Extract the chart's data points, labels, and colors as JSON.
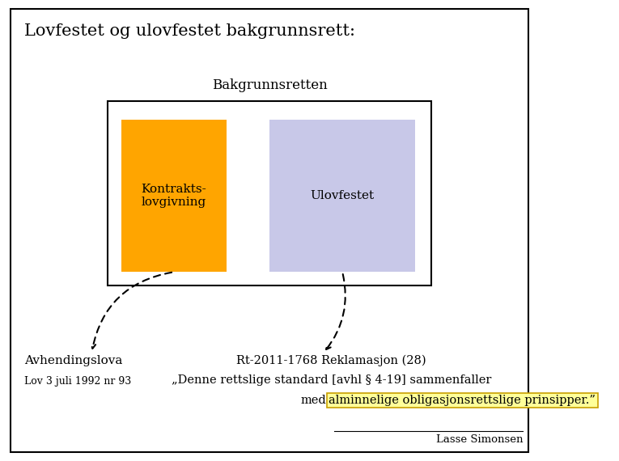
{
  "title": "Lovfestet og ulovfestet bakgrunnsrett:",
  "background_color": "#ffffff",
  "outer_box_color": "#000000",
  "inner_box_color": "#000000",
  "orange_box_color": "#FFA500",
  "blue_box_color": "#C8C8E8",
  "bakgrunnsretten_label": "Bakgrunnsretten",
  "kontrakts_label": "Kontrakts-\nlovgivning",
  "ulovfestet_label": "Ulovfestet",
  "avhendingslova_line1": "Avhendingslova",
  "avhendingslova_line2": "Lov 3 juli 1992 nr 93",
  "rt_line1": "Rt-2011-1768 Reklamasjon (28)",
  "rt_line2": "„Denne rettslige standard [avhl § 4-19] sammenfaller",
  "rt_line3_pre": "med",
  "rt_highlighted": "alminnelige obligasjonsrettslige prinsipper.”",
  "highlight_color": "#FFFF99",
  "highlight_border": "#C8A000",
  "lasse_simonsen": "Lasse Simonsen"
}
